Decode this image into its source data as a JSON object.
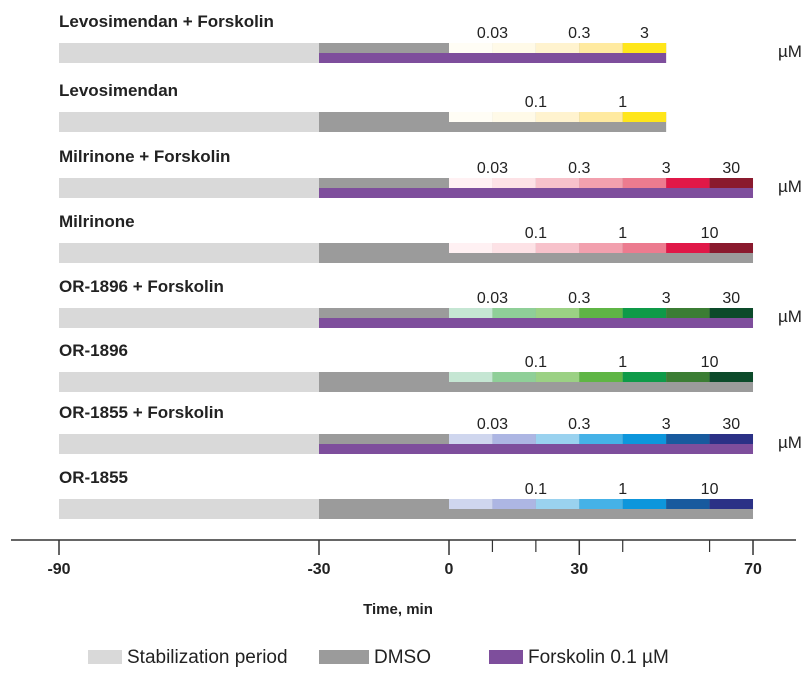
{
  "timeline": {
    "x_axis": {
      "title": "Time, min",
      "major_ticks": [
        {
          "value": -90,
          "label": "-90"
        },
        {
          "value": -30,
          "label": "-30"
        },
        {
          "value": 0,
          "label": "0"
        },
        {
          "value": 30,
          "label": "30"
        },
        {
          "value": 70,
          "label": "70"
        }
      ],
      "minor_ticks": [
        10,
        20,
        40,
        60
      ]
    },
    "phases": {
      "stabilization": {
        "start": -90,
        "end": -30
      },
      "dmso": {
        "start": -30,
        "end": 0
      }
    },
    "colors": {
      "stabilization": "#d9d9d9",
      "dmso": "#9b9b9b",
      "forskolin": "#7e4e9c",
      "axis": "#333333"
    },
    "rows": [
      {
        "title": "Levosimendan + Forskolin",
        "forskolin": true,
        "unit": "µM",
        "end": 50,
        "concentrations": [
          {
            "label": "0.03",
            "start": 0,
            "end": 20,
            "color": "#fffaeb"
          },
          {
            "label": "0.3",
            "start": 20,
            "end": 40,
            "color": "#fff0c4"
          },
          {
            "label": "3",
            "start": 40,
            "end": 50,
            "color": "#ffe61a"
          }
        ],
        "segments": [
          {
            "start": 0,
            "end": 10,
            "color": "#fffdf5"
          },
          {
            "start": 10,
            "end": 20,
            "color": "#fffae8"
          },
          {
            "start": 20,
            "end": 30,
            "color": "#fff3cf"
          },
          {
            "start": 30,
            "end": 40,
            "color": "#ffeaa0"
          },
          {
            "start": 40,
            "end": 50,
            "color": "#ffe61a"
          }
        ]
      },
      {
        "title": "Levosimendan",
        "forskolin": false,
        "unit": "",
        "end": 50,
        "concentrations": [
          {
            "label": "0.1",
            "start": 10,
            "end": 30,
            "color": ""
          },
          {
            "label": "1",
            "start": 30,
            "end": 50,
            "color": ""
          }
        ],
        "segments": [
          {
            "start": 0,
            "end": 10,
            "color": "#fffdf5"
          },
          {
            "start": 10,
            "end": 20,
            "color": "#fffae8"
          },
          {
            "start": 20,
            "end": 30,
            "color": "#fff3cf"
          },
          {
            "start": 30,
            "end": 40,
            "color": "#ffeaa0"
          },
          {
            "start": 40,
            "end": 50,
            "color": "#ffe61a"
          }
        ]
      },
      {
        "title": "Milrinone + Forskolin",
        "forskolin": true,
        "unit": "µM",
        "end": 70,
        "concentrations": [
          {
            "label": "0.03",
            "start": 0,
            "end": 20,
            "color": ""
          },
          {
            "label": "0.3",
            "start": 20,
            "end": 40,
            "color": ""
          },
          {
            "label": "3",
            "start": 40,
            "end": 60,
            "color": ""
          },
          {
            "label": "30",
            "start": 60,
            "end": 70,
            "color": ""
          }
        ],
        "segments": [
          {
            "start": 0,
            "end": 10,
            "color": "#fff1f3"
          },
          {
            "start": 10,
            "end": 20,
            "color": "#fde2e6"
          },
          {
            "start": 20,
            "end": 30,
            "color": "#f7c2cb"
          },
          {
            "start": 30,
            "end": 40,
            "color": "#f2a0ae"
          },
          {
            "start": 40,
            "end": 50,
            "color": "#ec7b8f"
          },
          {
            "start": 50,
            "end": 60,
            "color": "#e01848"
          },
          {
            "start": 60,
            "end": 70,
            "color": "#8a1a2e"
          }
        ]
      },
      {
        "title": "Milrinone",
        "forskolin": false,
        "unit": "",
        "end": 70,
        "concentrations": [
          {
            "label": "0.1",
            "start": 10,
            "end": 30,
            "color": ""
          },
          {
            "label": "1",
            "start": 30,
            "end": 50,
            "color": ""
          },
          {
            "label": "10",
            "start": 50,
            "end": 70,
            "color": ""
          }
        ],
        "segments": [
          {
            "start": 0,
            "end": 10,
            "color": "#fff1f3"
          },
          {
            "start": 10,
            "end": 20,
            "color": "#fde2e6"
          },
          {
            "start": 20,
            "end": 30,
            "color": "#f7c2cb"
          },
          {
            "start": 30,
            "end": 40,
            "color": "#f2a0ae"
          },
          {
            "start": 40,
            "end": 50,
            "color": "#ec7b8f"
          },
          {
            "start": 50,
            "end": 60,
            "color": "#e01848"
          },
          {
            "start": 60,
            "end": 70,
            "color": "#8a1a2e"
          }
        ]
      },
      {
        "title": "OR-1896 + Forskolin",
        "forskolin": true,
        "unit": "µM",
        "end": 70,
        "concentrations": [
          {
            "label": "0.03",
            "start": 0,
            "end": 20,
            "color": ""
          },
          {
            "label": "0.3",
            "start": 20,
            "end": 40,
            "color": ""
          },
          {
            "label": "3",
            "start": 40,
            "end": 60,
            "color": ""
          },
          {
            "label": "30",
            "start": 60,
            "end": 70,
            "color": ""
          }
        ],
        "segments": [
          {
            "start": 0,
            "end": 10,
            "color": "#c5e6d3"
          },
          {
            "start": 10,
            "end": 20,
            "color": "#8fcf98"
          },
          {
            "start": 20,
            "end": 30,
            "color": "#9bd184"
          },
          {
            "start": 30,
            "end": 40,
            "color": "#5fb545"
          },
          {
            "start": 40,
            "end": 50,
            "color": "#0e9a48"
          },
          {
            "start": 50,
            "end": 60,
            "color": "#3b7d34"
          },
          {
            "start": 60,
            "end": 70,
            "color": "#0c4a2a"
          }
        ]
      },
      {
        "title": "OR-1896",
        "forskolin": false,
        "unit": "",
        "end": 70,
        "concentrations": [
          {
            "label": "0.1",
            "start": 10,
            "end": 30,
            "color": ""
          },
          {
            "label": "1",
            "start": 30,
            "end": 50,
            "color": ""
          },
          {
            "label": "10",
            "start": 50,
            "end": 70,
            "color": ""
          }
        ],
        "segments": [
          {
            "start": 0,
            "end": 10,
            "color": "#c5e6d3"
          },
          {
            "start": 10,
            "end": 20,
            "color": "#8fcf98"
          },
          {
            "start": 20,
            "end": 30,
            "color": "#9bd184"
          },
          {
            "start": 30,
            "end": 40,
            "color": "#5fb545"
          },
          {
            "start": 40,
            "end": 50,
            "color": "#0e9a48"
          },
          {
            "start": 50,
            "end": 60,
            "color": "#3b7d34"
          },
          {
            "start": 60,
            "end": 70,
            "color": "#0c4a2a"
          }
        ]
      },
      {
        "title": "OR-1855 + Forskolin",
        "forskolin": true,
        "unit": "µM",
        "end": 70,
        "concentrations": [
          {
            "label": "0.03",
            "start": 0,
            "end": 20,
            "color": ""
          },
          {
            "label": "0.3",
            "start": 20,
            "end": 40,
            "color": ""
          },
          {
            "label": "3",
            "start": 40,
            "end": 60,
            "color": ""
          },
          {
            "label": "30",
            "start": 60,
            "end": 70,
            "color": ""
          }
        ],
        "segments": [
          {
            "start": 0,
            "end": 10,
            "color": "#cfd6ee"
          },
          {
            "start": 10,
            "end": 20,
            "color": "#adb6e3"
          },
          {
            "start": 20,
            "end": 30,
            "color": "#9ad2ef"
          },
          {
            "start": 30,
            "end": 40,
            "color": "#45b2e7"
          },
          {
            "start": 40,
            "end": 50,
            "color": "#0d96dc"
          },
          {
            "start": 50,
            "end": 60,
            "color": "#185a9e"
          },
          {
            "start": 60,
            "end": 70,
            "color": "#2b3186"
          }
        ]
      },
      {
        "title": "OR-1855",
        "forskolin": false,
        "unit": "",
        "end": 70,
        "concentrations": [
          {
            "label": "0.1",
            "start": 10,
            "end": 30,
            "color": ""
          },
          {
            "label": "1",
            "start": 30,
            "end": 50,
            "color": ""
          },
          {
            "label": "10",
            "start": 50,
            "end": 70,
            "color": ""
          }
        ],
        "segments": [
          {
            "start": 0,
            "end": 10,
            "color": "#cfd6ee"
          },
          {
            "start": 10,
            "end": 20,
            "color": "#adb6e3"
          },
          {
            "start": 20,
            "end": 30,
            "color": "#9ad2ef"
          },
          {
            "start": 30,
            "end": 40,
            "color": "#45b2e7"
          },
          {
            "start": 40,
            "end": 50,
            "color": "#0d96dc"
          },
          {
            "start": 50,
            "end": 60,
            "color": "#185a9e"
          },
          {
            "start": 60,
            "end": 70,
            "color": "#2b3186"
          }
        ]
      }
    ],
    "legend": [
      {
        "label": "Stabilization period",
        "color": "#d9d9d9"
      },
      {
        "label": "DMSO",
        "color": "#9b9b9b"
      },
      {
        "label": "Forskolin 0.1 µM",
        "color": "#7e4e9c"
      }
    ]
  }
}
